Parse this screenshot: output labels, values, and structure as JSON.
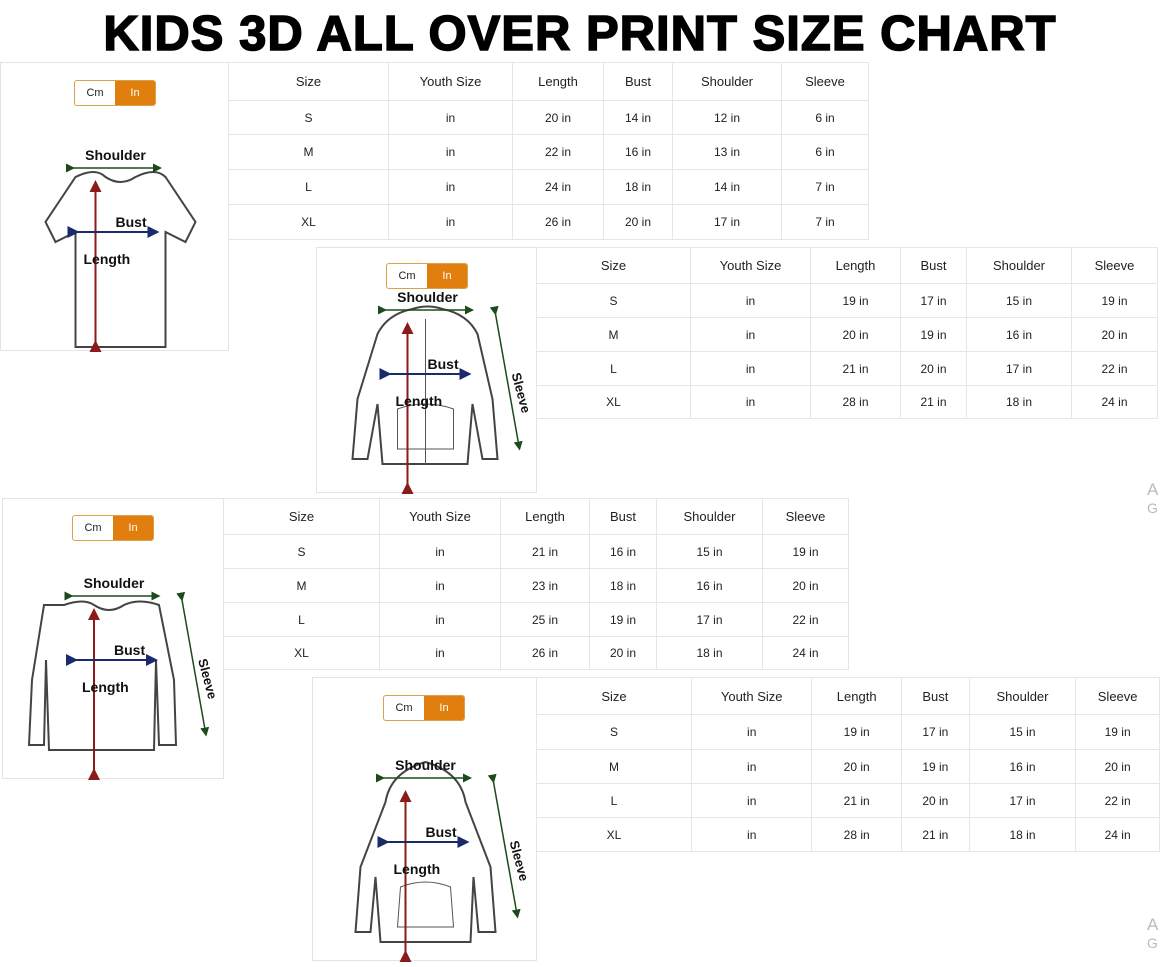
{
  "title": "KIDS 3D ALL OVER PRINT SIZE CHART",
  "toggle": {
    "cm": "Cm",
    "in": "In",
    "selected": "In",
    "active_color": "#e07f0d"
  },
  "labels": {
    "shoulder": "Shoulder",
    "bust": "Bust",
    "length": "Length",
    "sleeve": "Sleeve"
  },
  "columns": [
    "Size",
    "Youth Size",
    "Length",
    "Bust",
    "Shoulder",
    "Sleeve"
  ],
  "charts": [
    {
      "garment": "t-shirt",
      "rows": [
        [
          "S",
          "in",
          "20 in",
          "14 in",
          "12 in",
          "6 in"
        ],
        [
          "M",
          "in",
          "22 in",
          "16 in",
          "13 in",
          "6 in"
        ],
        [
          "L",
          "in",
          "24 in",
          "18 in",
          "14 in",
          "7 in"
        ],
        [
          "XL",
          "in",
          "26 in",
          "20 in",
          "17 in",
          "7 in"
        ]
      ]
    },
    {
      "garment": "zip-hoodie",
      "rows": [
        [
          "S",
          "in",
          "19 in",
          "17 in",
          "15 in",
          "19 in"
        ],
        [
          "M",
          "in",
          "20 in",
          "19 in",
          "16 in",
          "20 in"
        ],
        [
          "L",
          "in",
          "21 in",
          "20 in",
          "17 in",
          "22 in"
        ],
        [
          "XL",
          "in",
          "28 in",
          "21 in",
          "18 in",
          "24 in"
        ]
      ]
    },
    {
      "garment": "long-sleeve",
      "rows": [
        [
          "S",
          "in",
          "21 in",
          "16 in",
          "15 in",
          "19 in"
        ],
        [
          "M",
          "in",
          "23 in",
          "18 in",
          "16 in",
          "20 in"
        ],
        [
          "L",
          "in",
          "25 in",
          "19 in",
          "17 in",
          "22 in"
        ],
        [
          "XL",
          "in",
          "26 in",
          "20 in",
          "18 in",
          "24 in"
        ]
      ]
    },
    {
      "garment": "pullover-hoodie",
      "rows": [
        [
          "S",
          "in",
          "19 in",
          "17 in",
          "15 in",
          "19 in"
        ],
        [
          "M",
          "in",
          "20 in",
          "19 in",
          "16 in",
          "20 in"
        ],
        [
          "L",
          "in",
          "21 in",
          "20 in",
          "17 in",
          "22 in"
        ],
        [
          "XL",
          "in",
          "28 in",
          "21 in",
          "18 in",
          "24 in"
        ]
      ]
    }
  ],
  "watermark": {
    "line1": "A",
    "line2": "G"
  }
}
